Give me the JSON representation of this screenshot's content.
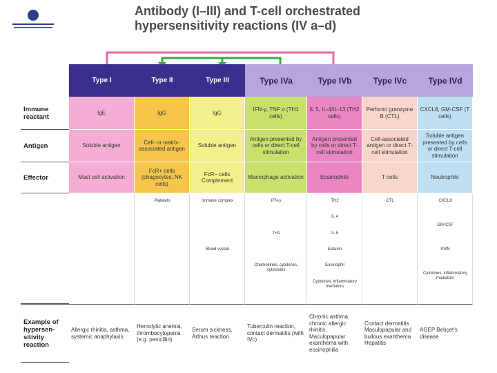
{
  "title": [
    "Antibody (I–III) and T-cell orchestrated",
    "hypersensitivity reactions (IV a–d)"
  ],
  "table": {
    "columns": [
      "Type I",
      "Type II",
      "Type III",
      "Type IVa",
      "Type IVb",
      "Type IVc",
      "Type IVd"
    ],
    "rows": [
      {
        "label": "Immune reactant",
        "cells": [
          "IgE",
          "IgG",
          "IgG",
          "IFN-γ, TNF α (TH1 cells)",
          "IL 5, IL-4/IL-13 (TH2 cells)",
          "Perforin/ granzyme B (CTL)",
          "CXCL8, GM-CSF (T cells)"
        ]
      },
      {
        "label": "Antigen",
        "cells": [
          "Soluble antigen",
          "Cell- or matrix-associated antigen",
          "Soluble antigen",
          "Antigen presented by cells or direct T-cell stimulation",
          "Antigen presented by cells or direct T-cell stimulation",
          "Cell-associated antigen or direct T-cell stimulation",
          "Soluble antigen presented by cells or direct T-cell stimulation"
        ]
      },
      {
        "label": "Effector",
        "cells": [
          "Mast cell activation",
          "FcR+ cells (phagocytes, NK cells)",
          "FcR− cells Complement",
          "Macrophage activation",
          "Eosinophils",
          "T cells",
          "Neutrophils"
        ]
      }
    ],
    "diagram_labels": [
      [],
      [
        "Platelets"
      ],
      [
        "Immune complex",
        "Blood vessel"
      ],
      [
        "IFN-γ",
        "TH1",
        "Chemokines, cytokines, cytotoxins"
      ],
      [
        "TH2",
        "IL 4",
        "IL 5",
        "Eotaxin",
        "Eosinophil",
        "Cytokines, inflammatory mediators"
      ],
      [
        "CTL"
      ],
      [
        "CXCL8",
        "GM-CSF",
        "PMN",
        "Cytokines, inflammatory mediators"
      ]
    ],
    "example": {
      "label": "Example of hypersen-sitivity reaction",
      "cells": [
        "Allergic rhinitis, asthma, systemic anaphylaxis",
        "Hemolytic anemia, thrombocytopenia (e.g. penicillin)",
        "Serum sickness, Arthus reaction",
        "Tuberculin reaction, contact dermatitis (with IVc)",
        "Chronic asthma, chronic allergic rhinitis, Maculopapular exanthema with eosinophilia",
        "Contact dermatitis Maculopapular and bullous exanthema Hepatitis",
        "AGEP Behçet's disease"
      ]
    }
  }
}
